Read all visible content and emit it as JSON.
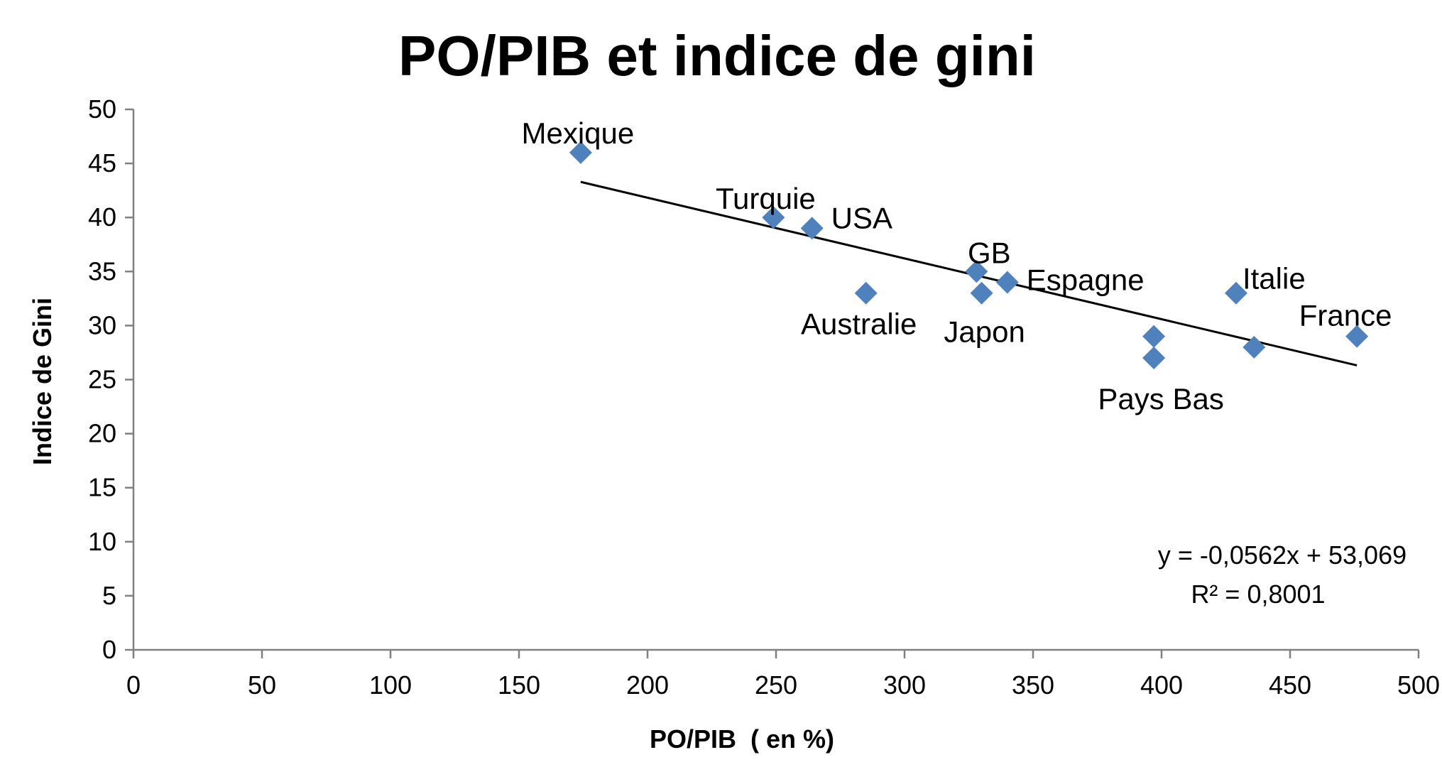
{
  "chart_data": {
    "type": "scatter",
    "title": "PO/PIB et indice de gini",
    "xlabel": "PO/PIB  ( en %)",
    "ylabel": "Indice de Gini",
    "xlim": [
      0,
      500
    ],
    "ylim": [
      0,
      50
    ],
    "x_ticks": [
      0,
      50,
      100,
      150,
      200,
      250,
      300,
      350,
      400,
      450,
      500
    ],
    "y_ticks": [
      0,
      5,
      10,
      15,
      20,
      25,
      30,
      35,
      40,
      45,
      50
    ],
    "grid": false,
    "marker_color": "#4F81BD",
    "points": [
      {
        "label": "Mexique",
        "x": 174,
        "y": 46
      },
      {
        "label": "Turquie",
        "x": 249,
        "y": 40
      },
      {
        "label": "USA",
        "x": 264,
        "y": 39
      },
      {
        "label": "Australie",
        "x": 285,
        "y": 33
      },
      {
        "label": "GB",
        "x": 328,
        "y": 35
      },
      {
        "label": "Japon",
        "x": 330,
        "y": 33
      },
      {
        "label": "Espagne",
        "x": 340,
        "y": 34
      },
      {
        "label": "",
        "x": 397,
        "y": 29
      },
      {
        "label": "Pays Bas",
        "x": 397,
        "y": 27
      },
      {
        "label": "Italie",
        "x": 429,
        "y": 33
      },
      {
        "label": "",
        "x": 436,
        "y": 28
      },
      {
        "label": "France",
        "x": 476,
        "y": 29
      }
    ],
    "trendline": {
      "type": "linear",
      "slope": -0.0562,
      "intercept": 53.069,
      "x_range": [
        174,
        476
      ],
      "equation": "y = -0,0562x + 53,069",
      "r_squared": "R² = 0,8001"
    }
  }
}
